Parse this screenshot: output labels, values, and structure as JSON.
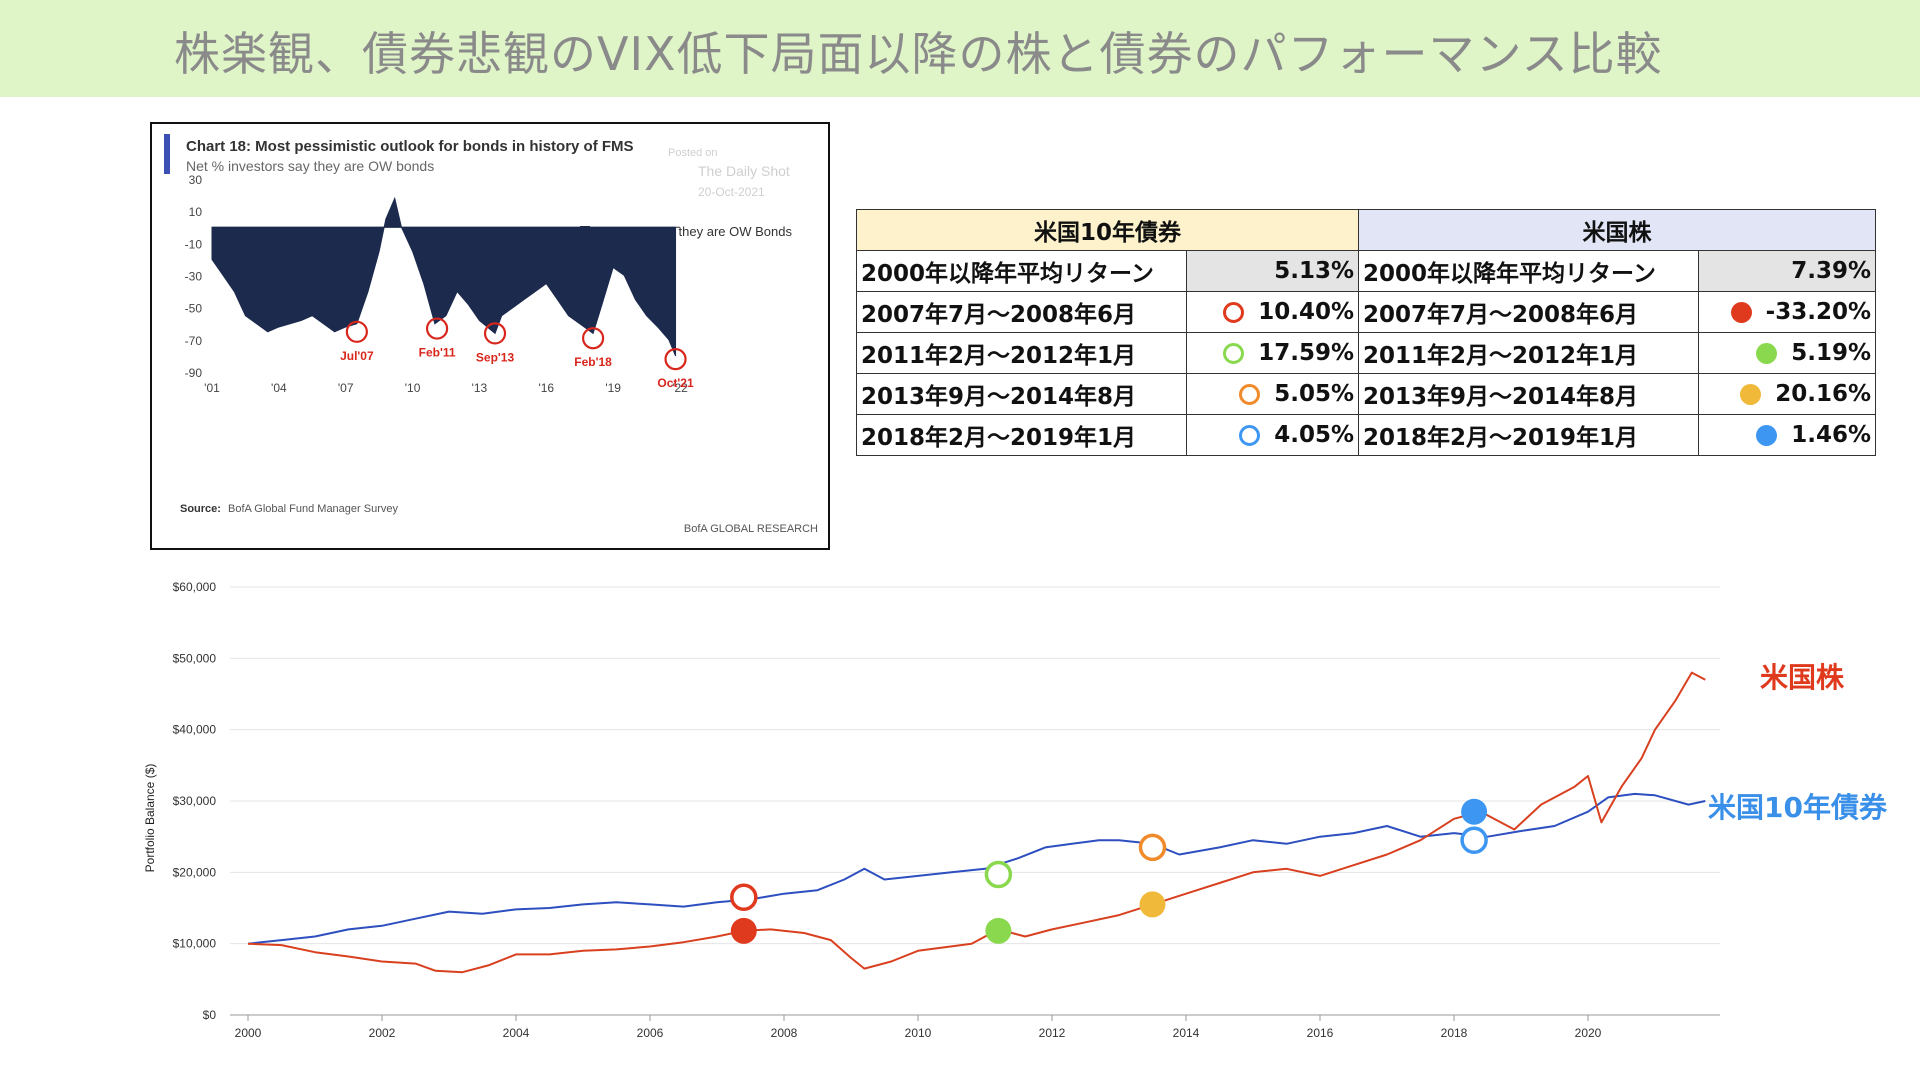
{
  "title": "株楽観、債券悲観のVIX低下局面以降の株と債券のパフォーマンス比較",
  "colors": {
    "bond_line": "#2d4fbf",
    "stock_line": "#d8401f",
    "stock_label": "#e03a1e",
    "bond_label": "#3a8fe8",
    "marker_red": "#e03a1e",
    "marker_green": "#8ad84e",
    "marker_orange": "#f08a2a",
    "marker_yellow": "#f0b93a",
    "marker_blue": "#3d97f2",
    "fms_bar": "#1c2a4d",
    "fms_accent": "#3b4fb5",
    "title_bg": "#dff5c8"
  },
  "fms_chart": {
    "title": "Chart 18: Most pessimistic outlook for bonds in history of FMS",
    "subtitle": "Net % investors say they are OW bonds",
    "watermark": [
      "Posted on",
      "The Daily Shot",
      "20-Oct-2021"
    ],
    "legend": "Net % AA Say they are OW Bonds",
    "source_label": "Source:",
    "source": "BofA Global Fund Manager Survey",
    "brand": "BofA GLOBAL RESEARCH",
    "chart_data": {
      "type": "area",
      "y_ticks": [
        30,
        10,
        -10,
        -30,
        -50,
        -70,
        -90
      ],
      "x_ticks": [
        "'01",
        "'04",
        "'07",
        "'10",
        "'13",
        "'16",
        "'19",
        "'22"
      ],
      "ylim": [
        -90,
        30
      ],
      "xlim": [
        2001,
        2022
      ],
      "series_name": "Net % AA Say they are OW Bonds",
      "x": [
        2001.0,
        2001.5,
        2002.0,
        2002.5,
        2003.0,
        2003.5,
        2004.0,
        2004.5,
        2005.0,
        2005.5,
        2006.0,
        2006.5,
        2007.0,
        2007.5,
        2008.0,
        2008.5,
        2008.8,
        2009.2,
        2009.5,
        2010.0,
        2010.5,
        2011.0,
        2011.5,
        2012.0,
        2012.5,
        2013.0,
        2013.7,
        2014.0,
        2014.5,
        2015.0,
        2015.5,
        2016.0,
        2016.5,
        2017.0,
        2017.5,
        2018.1,
        2018.5,
        2019.0,
        2019.5,
        2020.0,
        2020.5,
        2021.0,
        2021.5,
        2021.8
      ],
      "values": [
        -20,
        -30,
        -40,
        -55,
        -60,
        -65,
        -62,
        -60,
        -58,
        -55,
        -60,
        -65,
        -62,
        -60,
        -40,
        -15,
        5,
        18,
        0,
        -15,
        -35,
        -60,
        -55,
        -40,
        -48,
        -58,
        -66,
        -55,
        -50,
        -45,
        -40,
        -35,
        -45,
        -55,
        -60,
        -66,
        -48,
        -25,
        -30,
        -45,
        -55,
        -62,
        -70,
        -80
      ],
      "annotations": [
        {
          "label": "Jul'07",
          "x": 2007.5,
          "y": -65
        },
        {
          "label": "Feb'11",
          "x": 2011.1,
          "y": -63
        },
        {
          "label": "Sep'13",
          "x": 2013.7,
          "y": -66
        },
        {
          "label": "Feb'18",
          "x": 2018.1,
          "y": -69
        },
        {
          "label": "Oct'21",
          "x": 2021.8,
          "y": -82
        }
      ]
    }
  },
  "table": {
    "bond_header": "米国10年債券",
    "stock_header": "米国株",
    "rows": [
      {
        "label": "2000年以降年平均リターン",
        "bond": "5.13%",
        "stock": "7.39%",
        "bond_marker": "",
        "stock_marker": ""
      },
      {
        "label": "2007年7月～2008年6月",
        "bond": "10.40%",
        "stock": "-33.20%",
        "bond_marker": "#e03a1e",
        "stock_marker": "#e03a1e"
      },
      {
        "label": "2011年2月～2012年1月",
        "bond": "17.59%",
        "stock": "5.19%",
        "bond_marker": "#8ad84e",
        "stock_marker": "#8ad84e"
      },
      {
        "label": "2013年9月～2014年8月",
        "bond": "5.05%",
        "stock": "20.16%",
        "bond_marker": "#f08a2a",
        "stock_marker": "#f0b93a"
      },
      {
        "label": "2018年2月～2019年1月",
        "bond": "4.05%",
        "stock": "1.46%",
        "bond_marker": "#3d97f2",
        "stock_marker": "#3d97f2"
      }
    ]
  },
  "main_chart": {
    "ylabel": "Portfolio Balance ($)",
    "stock_label": "米国株",
    "bond_label": "米国10年債券",
    "chart_data": {
      "type": "line",
      "y_ticks": [
        "$0",
        "$10,000",
        "$20,000",
        "$30,000",
        "$40,000",
        "$50,000",
        "$60,000"
      ],
      "x_ticks": [
        "2000",
        "2002",
        "2004",
        "2006",
        "2008",
        "2010",
        "2012",
        "2014",
        "2016",
        "2018",
        "2020"
      ],
      "ylim": [
        0,
        60000
      ],
      "xlim": [
        2000,
        2022
      ],
      "grid": true,
      "series": [
        {
          "name": "米国10年債券",
          "x": [
            2000.0,
            2000.5,
            2001.0,
            2001.5,
            2002.0,
            2002.5,
            2003.0,
            2003.5,
            2004.0,
            2004.5,
            2005.0,
            2005.5,
            2006.0,
            2006.5,
            2007.0,
            2007.5,
            2008.0,
            2008.5,
            2008.9,
            2009.2,
            2009.5,
            2010.0,
            2010.5,
            2011.0,
            2011.5,
            2011.9,
            2012.3,
            2012.7,
            2013.0,
            2013.5,
            2013.9,
            2014.5,
            2015.0,
            2015.5,
            2016.0,
            2016.5,
            2017.0,
            2017.5,
            2018.0,
            2018.5,
            2019.0,
            2019.5,
            2020.0,
            2020.3,
            2020.7,
            2021.0,
            2021.5,
            2021.75
          ],
          "values": [
            10000,
            10500,
            11000,
            12000,
            12500,
            13500,
            14500,
            14200,
            14800,
            15000,
            15500,
            15800,
            15500,
            15200,
            15800,
            16200,
            17000,
            17500,
            19000,
            20500,
            19000,
            19500,
            20000,
            20500,
            22000,
            23500,
            24000,
            24500,
            24500,
            24000,
            22500,
            23500,
            24500,
            24000,
            25000,
            25500,
            26500,
            25000,
            25500,
            25000,
            25800,
            26500,
            28500,
            30500,
            31000,
            30800,
            29500,
            30000
          ]
        },
        {
          "name": "米国株",
          "x": [
            2000.0,
            2000.5,
            2001.0,
            2001.5,
            2002.0,
            2002.5,
            2002.8,
            2003.2,
            2003.6,
            2004.0,
            2004.5,
            2005.0,
            2005.5,
            2006.0,
            2006.5,
            2007.0,
            2007.4,
            2007.8,
            2008.3,
            2008.7,
            2009.0,
            2009.2,
            2009.6,
            2010.0,
            2010.4,
            2010.8,
            2011.2,
            2011.6,
            2012.0,
            2012.5,
            2013.0,
            2013.5,
            2014.0,
            2014.5,
            2015.0,
            2015.5,
            2016.0,
            2016.5,
            2017.0,
            2017.5,
            2018.0,
            2018.4,
            2018.9,
            2019.3,
            2019.8,
            2020.0,
            2020.2,
            2020.5,
            2020.8,
            2021.0,
            2021.3,
            2021.55,
            2021.75
          ],
          "values": [
            10000,
            9800,
            8800,
            8200,
            7500,
            7200,
            6200,
            6000,
            7000,
            8500,
            8500,
            9000,
            9200,
            9600,
            10200,
            11000,
            11800,
            12000,
            11500,
            10500,
            8000,
            6500,
            7500,
            9000,
            9500,
            10000,
            12000,
            11000,
            12000,
            13000,
            14000,
            15500,
            17000,
            18500,
            20000,
            20500,
            19500,
            21000,
            22500,
            24500,
            27500,
            28500,
            26000,
            29500,
            32000,
            33500,
            27000,
            32000,
            36000,
            40000,
            44000,
            48000,
            47000
          ]
        }
      ],
      "markers": [
        {
          "series": "米国10年債券",
          "x": 2007.4,
          "y": 16500,
          "style": "ring",
          "color": "#e03a1e"
        },
        {
          "series": "米国株",
          "x": 2007.4,
          "y": 11800,
          "style": "filled",
          "color": "#e03a1e"
        },
        {
          "series": "米国10年債券",
          "x": 2011.2,
          "y": 19700,
          "style": "ring",
          "color": "#8ad84e"
        },
        {
          "series": "米国株",
          "x": 2011.2,
          "y": 11800,
          "style": "filled",
          "color": "#8ad84e"
        },
        {
          "series": "米国10年債券",
          "x": 2013.5,
          "y": 23500,
          "style": "ring",
          "color": "#f08a2a"
        },
        {
          "series": "米国株",
          "x": 2013.5,
          "y": 15500,
          "style": "filled",
          "color": "#f0b93a"
        },
        {
          "series": "米国10年債券",
          "x": 2018.3,
          "y": 24500,
          "style": "ring",
          "color": "#3d97f2"
        },
        {
          "series": "米国株",
          "x": 2018.3,
          "y": 28500,
          "style": "filled",
          "color": "#3d97f2"
        }
      ]
    }
  }
}
